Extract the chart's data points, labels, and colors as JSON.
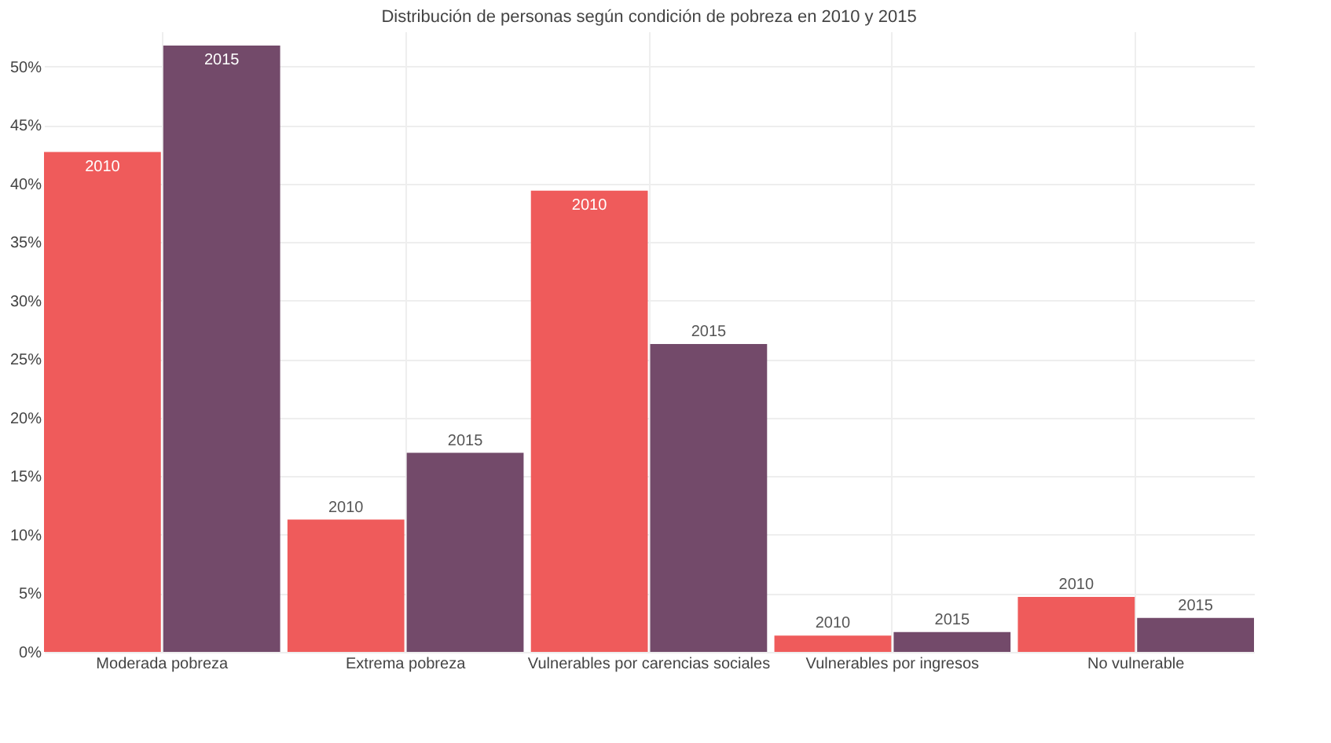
{
  "chart_data": {
    "type": "bar",
    "title": "Distribución de personas según condición de pobreza en 2010 y 2015",
    "categories": [
      "Moderada pobreza",
      "Extrema pobreza",
      "Vulnerables por carencias sociales",
      "Vulnerables por ingresos",
      "No vulnerable"
    ],
    "series": [
      {
        "name": "2010",
        "color": "#ef5b5b",
        "values": [
          42.7,
          11.3,
          39.4,
          1.4,
          4.7
        ]
      },
      {
        "name": "2015",
        "color": "#734a6a",
        "values": [
          51.8,
          17.0,
          26.3,
          1.7,
          2.9
        ]
      }
    ],
    "ylim": [
      0,
      53
    ],
    "yticks": [
      {
        "value": 0,
        "label": "0%"
      },
      {
        "value": 5,
        "label": "5%"
      },
      {
        "value": 10,
        "label": "10%"
      },
      {
        "value": 15,
        "label": "15%"
      },
      {
        "value": 20,
        "label": "20%"
      },
      {
        "value": 25,
        "label": "25%"
      },
      {
        "value": 30,
        "label": "30%"
      },
      {
        "value": 35,
        "label": "35%"
      },
      {
        "value": 40,
        "label": "40%"
      },
      {
        "value": 45,
        "label": "45%"
      },
      {
        "value": 50,
        "label": "50%"
      }
    ],
    "grid": true,
    "legend": false
  }
}
